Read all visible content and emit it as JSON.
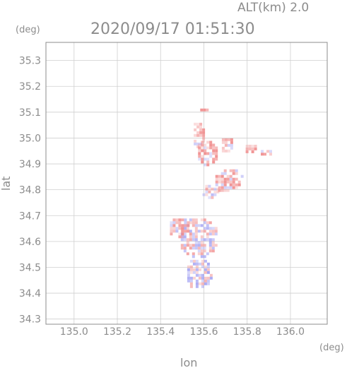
{
  "header": {
    "alt_label": "ALT(km)  2.0",
    "datetime": "2020/09/17  01:51:30",
    "deg_top": "(deg)",
    "deg_right": "(deg)"
  },
  "colors": {
    "axis": "#8c8c8c",
    "grid": "#cfcfcf",
    "positive": "#f08a8a",
    "negative": "#8a8af0"
  },
  "chart_data": {
    "type": "heatmap",
    "title": "2020/09/17  01:51:30",
    "xlabel": "lon",
    "ylabel": "lat",
    "x_unit": "(deg)",
    "y_unit": "(deg)",
    "xlim": [
      134.87,
      136.17
    ],
    "ylim": [
      34.28,
      35.37
    ],
    "grid": true,
    "x_ticks": [
      "135.0",
      "135.2",
      "135.4",
      "135.6",
      "135.8",
      "136.0"
    ],
    "y_ticks": [
      "34.3",
      "34.4",
      "34.5",
      "34.6",
      "34.7",
      "34.8",
      "34.9",
      "35.0",
      "35.1",
      "35.2",
      "35.3"
    ],
    "clusters": [
      {
        "lon": 135.59,
        "lat": 35.11,
        "rlon": 0.02,
        "rlat": 0.015,
        "v": 0.6
      },
      {
        "lon": 135.57,
        "lat": 35.02,
        "rlon": 0.03,
        "rlat": 0.05,
        "v": 0.5
      },
      {
        "lon": 135.61,
        "lat": 34.95,
        "rlon": 0.05,
        "rlat": 0.05,
        "v": 0.7
      },
      {
        "lon": 135.7,
        "lat": 34.98,
        "rlon": 0.03,
        "rlat": 0.03,
        "v": 0.4
      },
      {
        "lon": 135.81,
        "lat": 34.96,
        "rlon": 0.03,
        "rlat": 0.025,
        "v": 0.5
      },
      {
        "lon": 135.88,
        "lat": 34.95,
        "rlon": 0.03,
        "rlat": 0.015,
        "v": 0.4
      },
      {
        "lon": 135.71,
        "lat": 34.84,
        "rlon": 0.07,
        "rlat": 0.05,
        "v": 0.5
      },
      {
        "lon": 135.62,
        "lat": 34.8,
        "rlon": 0.04,
        "rlat": 0.03,
        "v": 0.2
      },
      {
        "lon": 135.57,
        "lat": 34.62,
        "rlon": 0.09,
        "rlat": 0.08,
        "v": 0.1
      },
      {
        "lon": 135.57,
        "lat": 34.48,
        "rlon": 0.06,
        "rlat": 0.06,
        "v": -0.1
      },
      {
        "lon": 135.48,
        "lat": 34.66,
        "rlon": 0.05,
        "rlat": 0.04,
        "v": 0.3
      }
    ]
  }
}
